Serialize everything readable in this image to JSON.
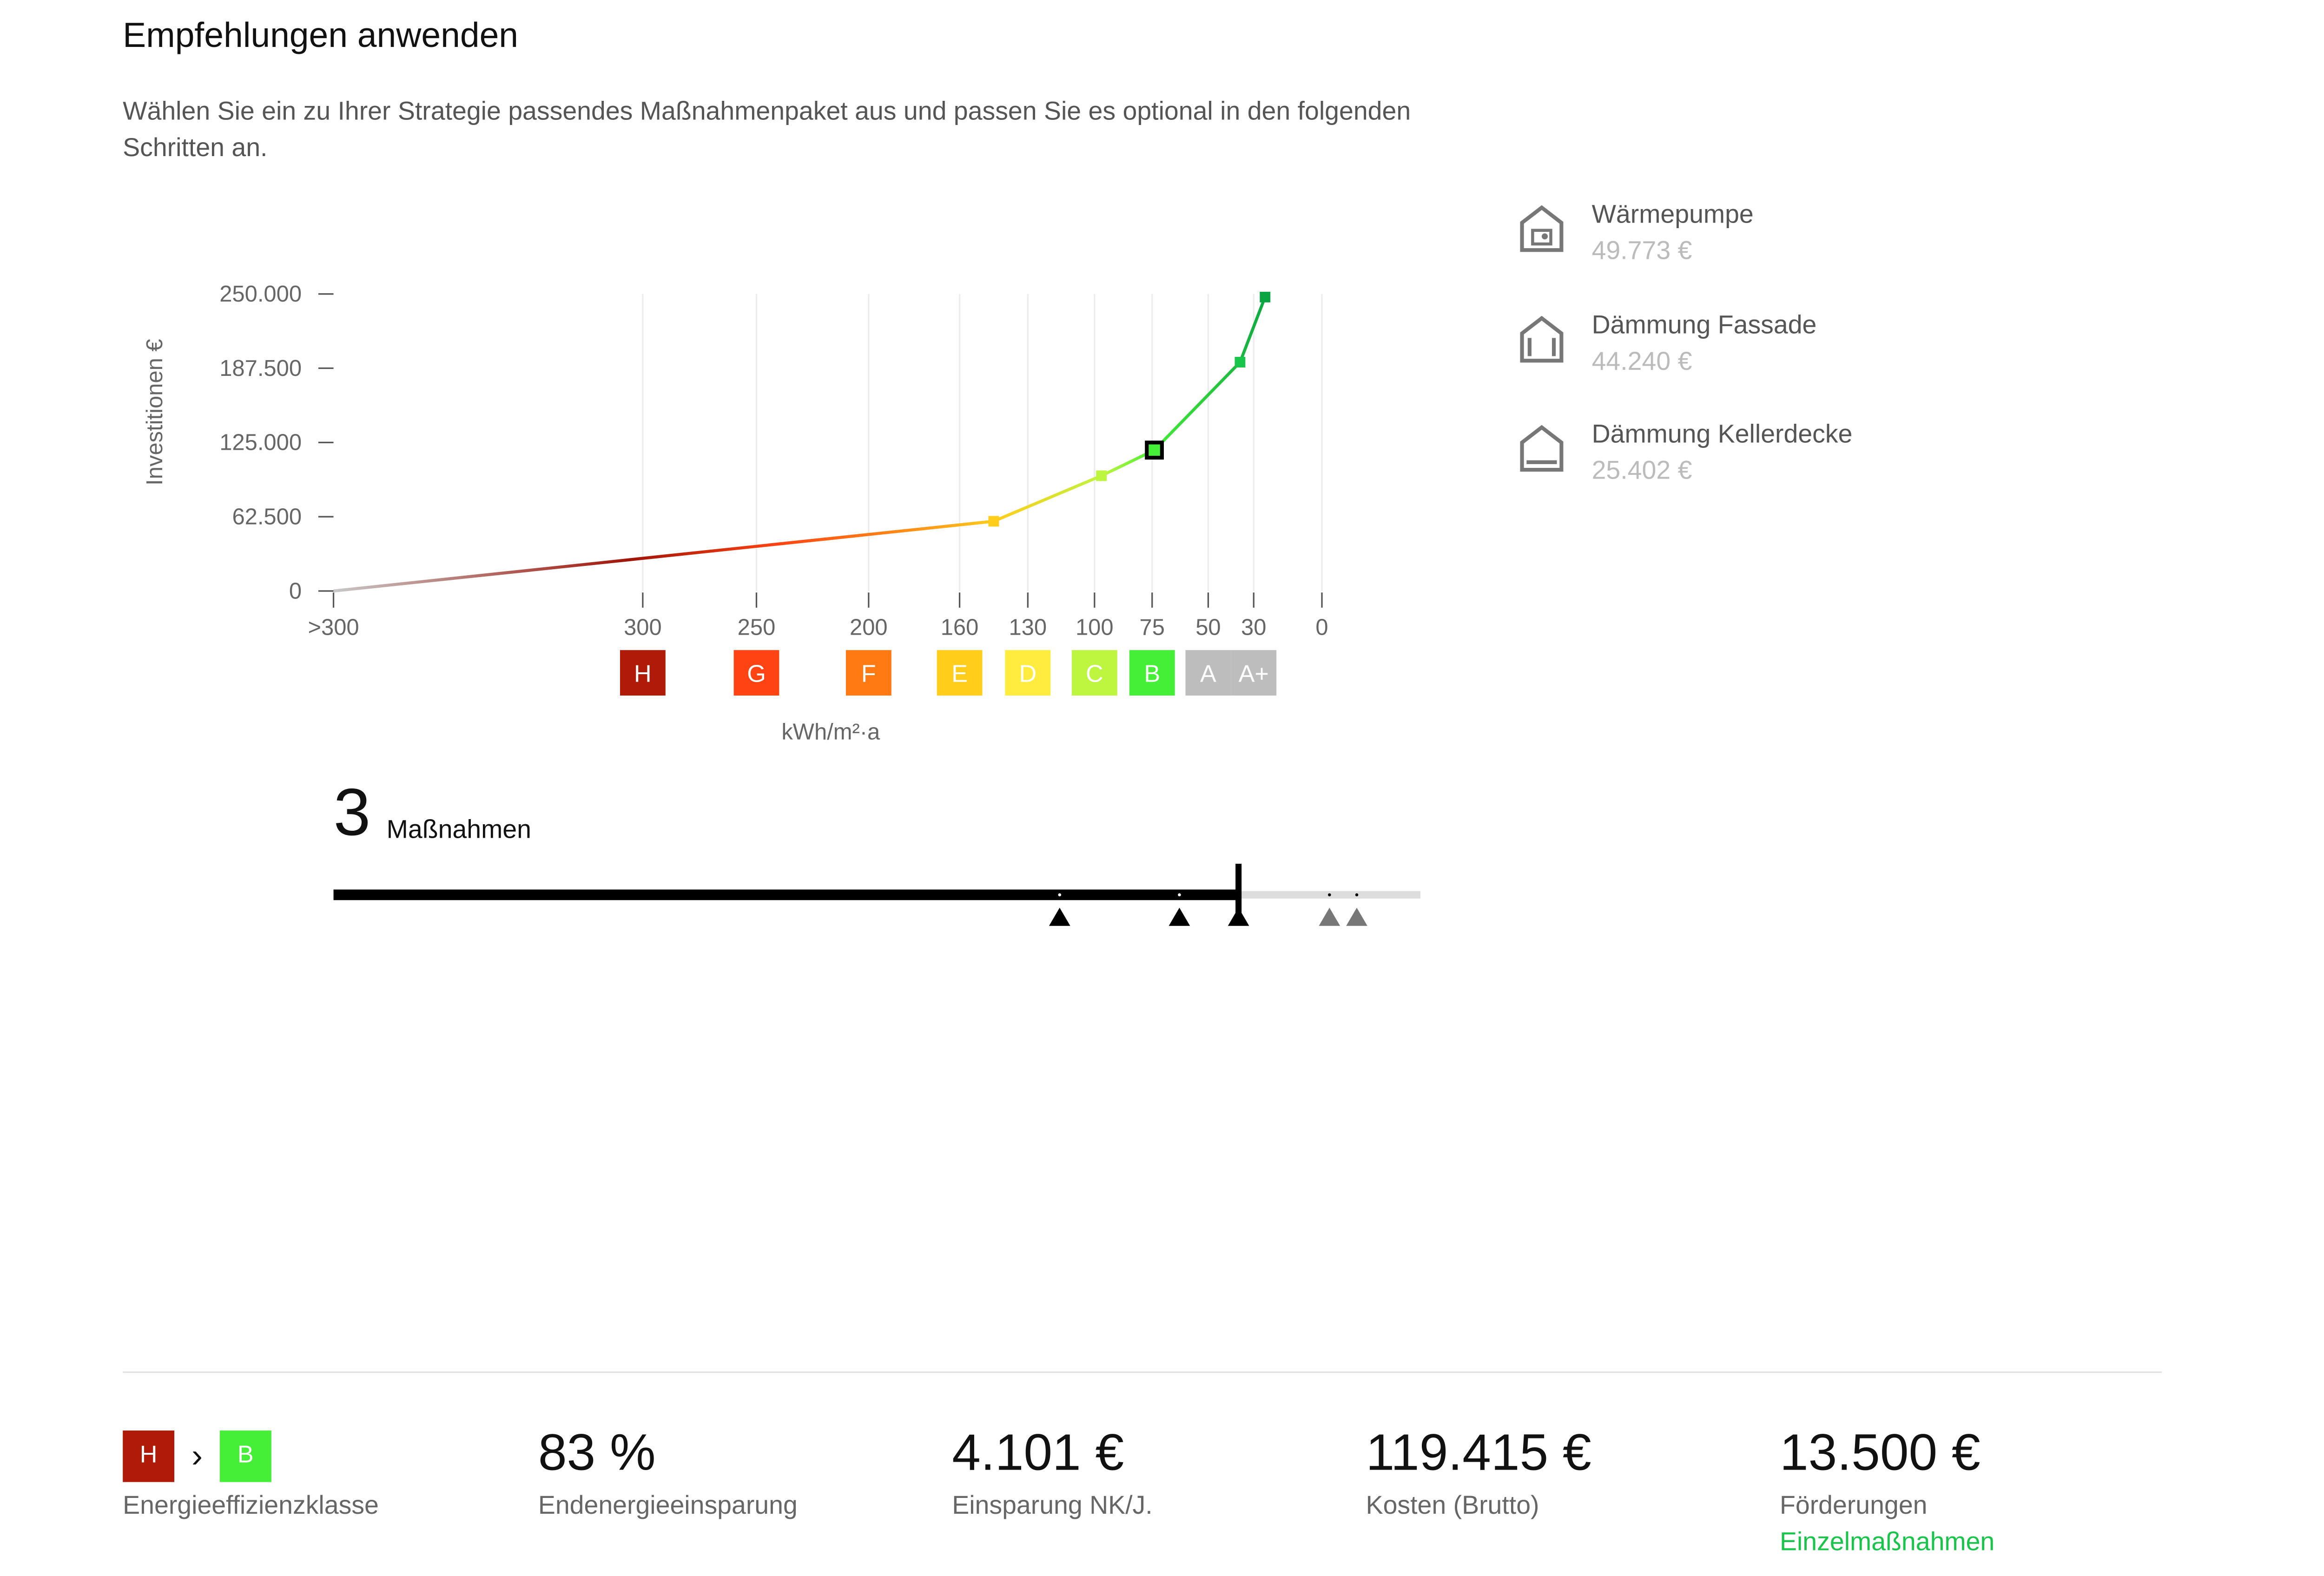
{
  "header": {
    "title": "Empfehlungen anwenden",
    "intro": "Wählen Sie ein zu Ihrer Strategie passendes Maßnahmenpaket aus und passen Sie es optional in den folgenden Schritten an."
  },
  "chart_data": {
    "type": "line",
    "ylabel": "Investitionen €",
    "xlabel": "kWh/m²·a",
    "ylim": [
      0,
      250000
    ],
    "y_ticks": [
      "250.000",
      "187.500",
      "125.000",
      "62.500",
      "0"
    ],
    "y_tick_values": [
      250000,
      187500,
      125000,
      62500,
      0
    ],
    "x_ticks": [
      ">300",
      "300",
      "250",
      "200",
      "160",
      "130",
      "100",
      "75",
      "50",
      "30",
      "0"
    ],
    "classes": [
      {
        "label": "H",
        "color": "#b01a08",
        "at": "300"
      },
      {
        "label": "G",
        "color": "#ff4312",
        "at": "250"
      },
      {
        "label": "F",
        "color": "#ff7a12",
        "at": "200"
      },
      {
        "label": "E",
        "color": "#ffcd1a",
        "at": "160"
      },
      {
        "label": "D",
        "color": "#ffec3e",
        "at": "130"
      },
      {
        "label": "C",
        "color": "#bdf53f",
        "at": "100"
      },
      {
        "label": "B",
        "color": "#45ee37",
        "at": "75"
      },
      {
        "label": "A",
        "color": "#bdbdbd",
        "at": "50"
      },
      {
        "label": "A+",
        "color": "#bdbdbd",
        "at": "30"
      }
    ],
    "points": [
      {
        "x": ">300",
        "y": 0,
        "color": "#c8c8c8"
      },
      {
        "x": 145,
        "y": 58700,
        "color": "#ffcd1a"
      },
      {
        "x": 97,
        "y": 97000,
        "color": "#bdf53f"
      },
      {
        "x": 74,
        "y": 118600,
        "color": "#45ee37",
        "selected": true
      },
      {
        "x": 36,
        "y": 192600,
        "color": "#19c44a"
      },
      {
        "x": 25,
        "y": 247400,
        "color": "#0aa542"
      }
    ]
  },
  "measures": [
    {
      "name": "Wärmepumpe",
      "cost": "49.773 €",
      "icon": "heat-pump-house-icon"
    },
    {
      "name": "Dämmung Fassade",
      "cost": "44.240 €",
      "icon": "facade-insulation-house-icon"
    },
    {
      "name": "Dämmung Kellerdecke",
      "cost": "25.402 €",
      "icon": "basement-insulation-house-icon"
    }
  ],
  "slider": {
    "count": "3",
    "label": "Maßnahmen",
    "selected_steps": 3,
    "total_steps": 5,
    "progress": 0.83
  },
  "summary": {
    "from_class": "H",
    "to_class": "B",
    "from_color": "#b01a08",
    "to_color": "#45ee37",
    "arrow": "›",
    "efficiency_label": "Energieeffizienzklasse",
    "savings_value": "83 %",
    "savings_label": "Endenergieeinsparung",
    "nk_value": "4.101 €",
    "nk_label": "Einsparung NK/J.",
    "cost_value": "119.415 €",
    "cost_label": "Kosten (Brutto)",
    "funding_value": "13.500 €",
    "funding_label": "Förderungen",
    "funding_link": "Einzelmaßnahmen"
  }
}
